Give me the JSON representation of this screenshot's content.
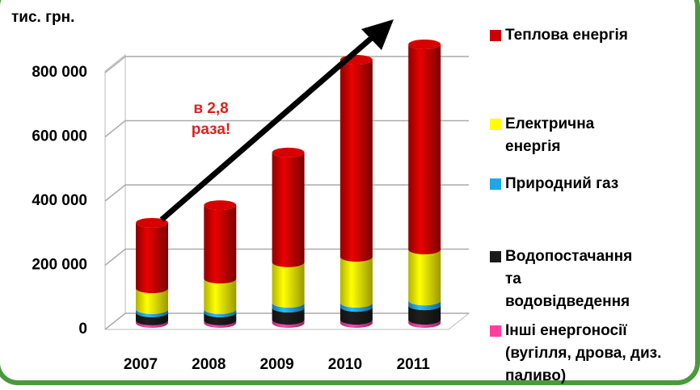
{
  "chart_data": {
    "type": "bar",
    "stacked": true,
    "y_axis_label": "тис. грн.",
    "annotation": "в 2,8 раза!",
    "categories": [
      "2007",
      "2008",
      "2009",
      "2010",
      "2011"
    ],
    "series": [
      {
        "name": "Інші енергоносії (вугілля, дрова, диз. паливо)",
        "color": "#ff3fa0",
        "values": [
          8000,
          8000,
          10000,
          10000,
          10000
        ]
      },
      {
        "name": "Водопостачання та водовідведення",
        "color": "#1a1a1a",
        "values": [
          25000,
          25000,
          38000,
          40000,
          45000
        ]
      },
      {
        "name": "Природний газ",
        "color": "#1fa6e8",
        "values": [
          10000,
          10000,
          15000,
          13000,
          15000
        ]
      },
      {
        "name": "Електрична енергія",
        "color": "#ffff00",
        "values": [
          65000,
          95000,
          126000,
          143000,
          159000
        ]
      },
      {
        "name": "Теплова енергія",
        "color": "#cc0000",
        "values": [
          204000,
          229000,
          342000,
          614000,
          639000
        ]
      }
    ],
    "ylim": [
      0,
      900000
    ],
    "yticks": [
      0,
      {
        "value": 200000,
        "label": "200 000"
      },
      {
        "value": 400000,
        "label": "400 000"
      },
      {
        "value": 600000,
        "label": "600 000"
      },
      {
        "value": 800000,
        "label": "800 000"
      }
    ],
    "grid": true
  }
}
